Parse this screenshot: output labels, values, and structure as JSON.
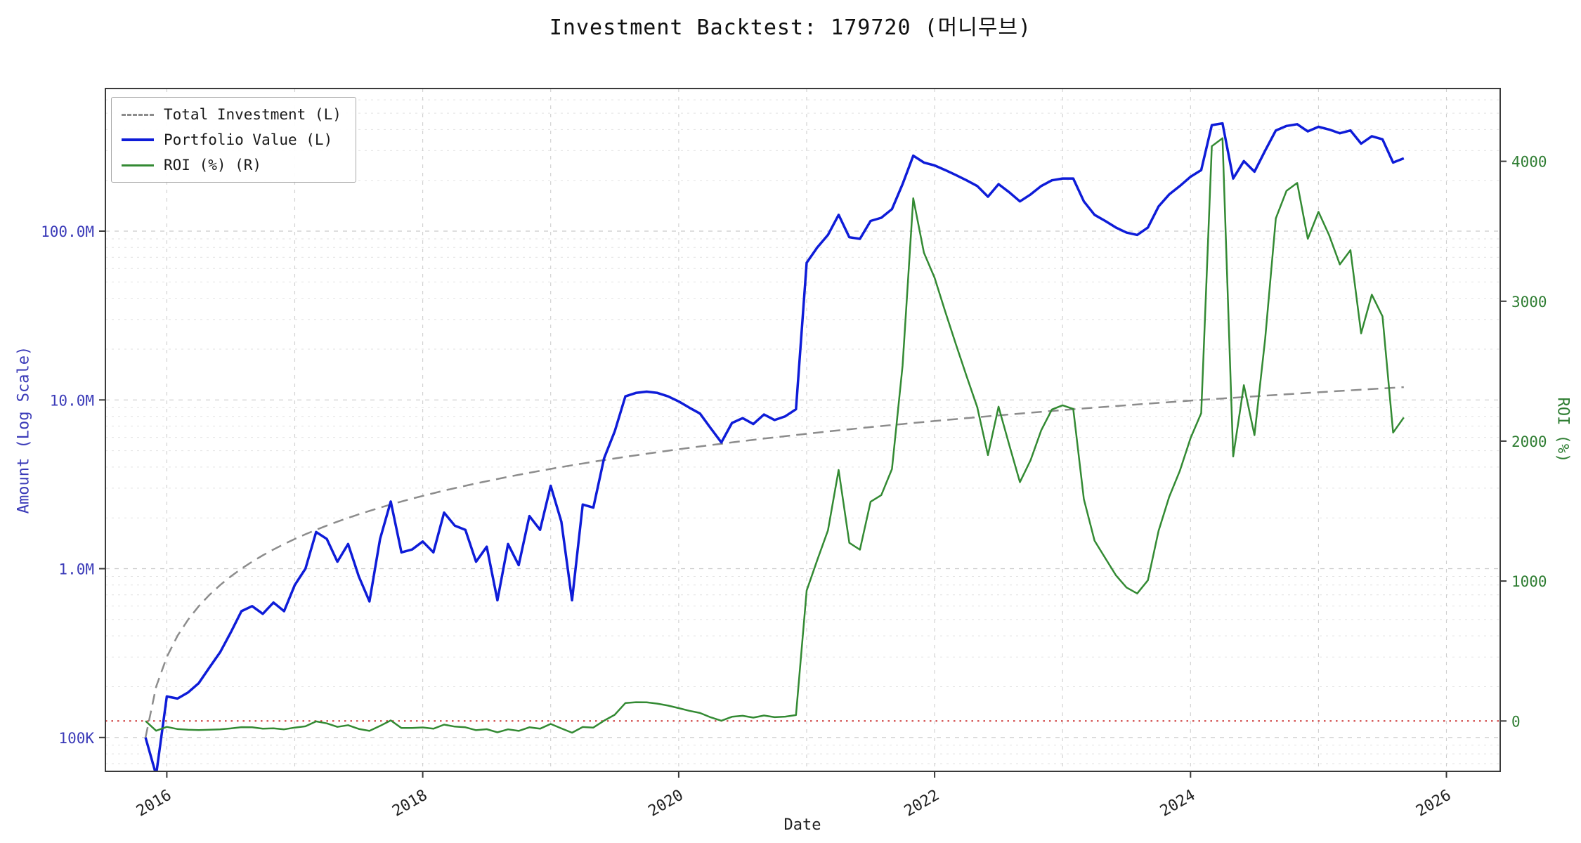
{
  "title": "Investment Backtest: 179720 (머니무브)",
  "chart_data": {
    "type": "line",
    "title": "Investment Backtest: 179720 (머니무브)",
    "xlabel": "Date",
    "ylabel_left": "Amount (Log Scale)",
    "ylabel_right": "ROI (%)",
    "legend_position": "upper-left",
    "grid": true,
    "x_axis": {
      "min": 2015.52,
      "max": 2026.42,
      "tick_values": [
        2016,
        2018,
        2020,
        2022,
        2024,
        2026
      ],
      "tick_labels": [
        "2016",
        "2018",
        "2020",
        "2022",
        "2024",
        "2026"
      ],
      "year_gridlines": [
        2016,
        2017,
        2018,
        2019,
        2020,
        2021,
        2022,
        2023,
        2024,
        2025,
        2026
      ]
    },
    "left_axis": {
      "scale": "log",
      "min": 63000,
      "max": 700000000,
      "tick_values": [
        100000,
        1000000,
        10000000,
        100000000
      ],
      "tick_labels": [
        "100K",
        "1.0M",
        "10.0M",
        "100.0M"
      ],
      "color": "#3a3ab8"
    },
    "right_axis": {
      "scale": "linear",
      "min": -360,
      "max": 4520,
      "tick_values": [
        0,
        1000,
        2000,
        3000,
        4000
      ],
      "tick_labels": [
        "0",
        "1000",
        "2000",
        "3000",
        "4000"
      ],
      "color": "#2e7d32"
    },
    "zero_line": {
      "axis": "right",
      "value": 0,
      "color": "#cc3333",
      "style": "dotted"
    },
    "x_series": {
      "start_year": 2015,
      "start_month": 11,
      "interval": "monthly",
      "points": 119
    },
    "series": [
      {
        "name": "Total Investment (L)",
        "axis": "left",
        "color": "#8c8c8c",
        "style": "dashed",
        "width": 2.5,
        "values": [
          100000,
          200000,
          300000,
          400000,
          500000,
          600000,
          700000,
          800000,
          900000,
          1000000,
          1100000,
          1200000,
          1300000,
          1400000,
          1500000,
          1600000,
          1700000,
          1800000,
          1900000,
          2000000,
          2100000,
          2200000,
          2300000,
          2400000,
          2500000,
          2600000,
          2700000,
          2800000,
          2900000,
          3000000,
          3100000,
          3200000,
          3300000,
          3400000,
          3500000,
          3600000,
          3700000,
          3800000,
          3900000,
          4000000,
          4100000,
          4200000,
          4300000,
          4400000,
          4500000,
          4600000,
          4700000,
          4800000,
          4900000,
          5000000,
          5100000,
          5200000,
          5300000,
          5400000,
          5500000,
          5600000,
          5700000,
          5800000,
          5900000,
          6000000,
          6100000,
          6200000,
          6300000,
          6400000,
          6500000,
          6600000,
          6700000,
          6800000,
          6900000,
          7000000,
          7100000,
          7200000,
          7300000,
          7400000,
          7500000,
          7600000,
          7700000,
          7800000,
          7900000,
          8000000,
          8100000,
          8200000,
          8300000,
          8400000,
          8500000,
          8600000,
          8700000,
          8800000,
          8900000,
          9000000,
          9100000,
          9200000,
          9300000,
          9400000,
          9500000,
          9600000,
          9700000,
          9800000,
          9900000,
          10000000,
          10100000,
          10200000,
          10300000,
          10400000,
          10500000,
          10600000,
          10700000,
          10800000,
          10900000,
          11000000,
          11100000,
          11200000,
          11300000,
          11400000,
          11500000,
          11600000,
          11700000,
          11800000,
          11900000
        ]
      },
      {
        "name": "Portfolio Value (L)",
        "axis": "left",
        "color": "#0e1cd8",
        "style": "solid",
        "width": 3.5,
        "values": [
          100000,
          60000,
          175000,
          170000,
          185000,
          210000,
          260000,
          320000,
          420000,
          560000,
          600000,
          540000,
          630000,
          560000,
          800000,
          1000000,
          1650000,
          1500000,
          1100000,
          1400000,
          900000,
          640000,
          1500000,
          2500000,
          1250000,
          1300000,
          1450000,
          1250000,
          2150000,
          1800000,
          1700000,
          1100000,
          1350000,
          650000,
          1400000,
          1050000,
          2050000,
          1700000,
          3100000,
          1900000,
          650000,
          2400000,
          2300000,
          4500000,
          6500000,
          10500000,
          11000000,
          11200000,
          11000000,
          10500000,
          9800000,
          9000000,
          8300000,
          6800000,
          5600000,
          7300000,
          7800000,
          7200000,
          8200000,
          7600000,
          8000000,
          8800000,
          65000000,
          80000000,
          95000000,
          125000000,
          92000000,
          90000000,
          115000000,
          120000000,
          135000000,
          190000000,
          280000000,
          255000000,
          245000000,
          230000000,
          215000000,
          200000000,
          185000000,
          160000000,
          190000000,
          170000000,
          150000000,
          165000000,
          185000000,
          200000000,
          205000000,
          205000000,
          150000000,
          125000000,
          115000000,
          105000000,
          98000000,
          95000000,
          105000000,
          140000000,
          165000000,
          185000000,
          210000000,
          230000000,
          425000000,
          435000000,
          205000000,
          260000000,
          225000000,
          300000000,
          395000000,
          420000000,
          430000000,
          390000000,
          415000000,
          400000000,
          380000000,
          395000000,
          330000000,
          365000000,
          350000000,
          255000000,
          270000000
        ]
      },
      {
        "name": "ROI (%) (R)",
        "axis": "right",
        "color": "#338a33",
        "style": "solid",
        "width": 2.5,
        "values": [
          0,
          -70,
          -42,
          -58,
          -63,
          -65,
          -63,
          -60,
          -53,
          -44,
          -45,
          -55,
          -52,
          -60,
          -47,
          -38,
          -3,
          -17,
          -42,
          -30,
          -57,
          -71,
          -35,
          4,
          -50,
          -50,
          -46,
          -55,
          -26,
          -40,
          -45,
          -66,
          -59,
          -81,
          -60,
          -71,
          -45,
          -55,
          -21,
          -53,
          -84,
          -43,
          -47,
          2,
          44,
          128,
          134,
          133,
          124,
          110,
          92,
          73,
          57,
          26,
          2,
          30,
          37,
          24,
          39,
          27,
          31,
          42,
          932,
          1150,
          1362,
          1794,
          1273,
          1224,
          1567,
          1614,
          1801,
          2539,
          3736,
          3346,
          3167,
          2926,
          2692,
          2464,
          2242,
          1900,
          2246,
          1973,
          1707,
          1864,
          2077,
          2226,
          2256,
          2230,
          1585,
          1289,
          1164,
          1041,
          954,
          911,
          1005,
          1358,
          1601,
          1788,
          2021,
          2200,
          4108,
          4165,
          1890,
          2400,
          2043,
          2730,
          3592,
          3789,
          3845,
          3446,
          3639,
          3471,
          3263,
          3365,
          2770,
          3047,
          2892,
          2061,
          2169
        ]
      }
    ]
  }
}
